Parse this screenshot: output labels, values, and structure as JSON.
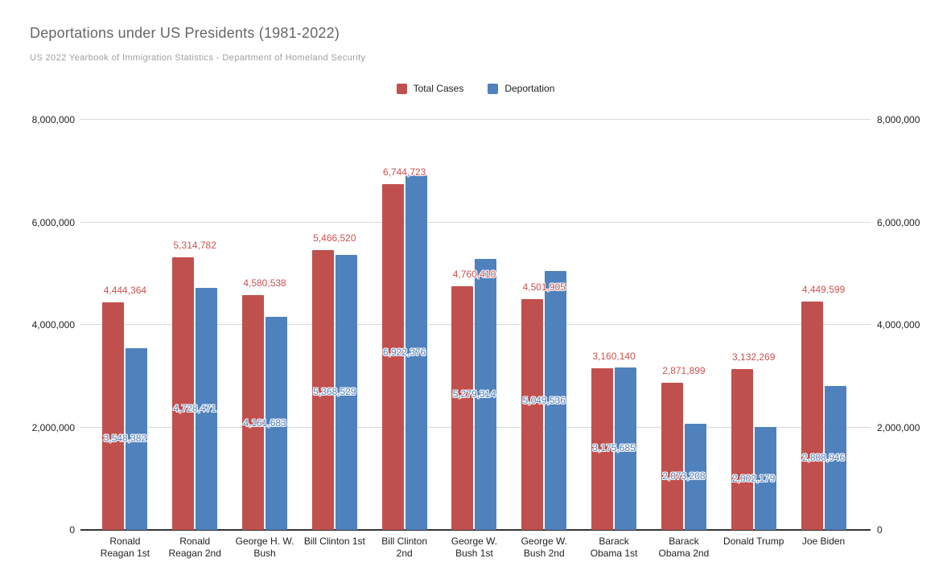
{
  "chart_data": {
    "type": "bar",
    "title": "Deportations under US Presidents (1981-2022)",
    "subtitle": "US 2022 Yearbook of Immigration Statistics - Department of Homeland Security",
    "categories": [
      "Ronald Reagan 1st",
      "Ronald Reagan 2nd",
      "George H. W. Bush",
      "Bill Clinton 1st",
      "Bill Clinton 2nd",
      "George W. Bush 1st",
      "George W. Bush 2nd",
      "Barack Obama 1st",
      "Barack Obama 2nd",
      "Donald Trump",
      "Joe Biden"
    ],
    "category_label_lines": [
      [
        "Ronald",
        "Reagan 1st"
      ],
      [
        "Ronald",
        "Reagan 2nd"
      ],
      [
        "George H. W.",
        "Bush"
      ],
      [
        "Bill Clinton 1st"
      ],
      [
        "Bill Clinton",
        "2nd"
      ],
      [
        "George W.",
        "Bush 1st"
      ],
      [
        "George W.",
        "Bush 2nd"
      ],
      [
        "Barack",
        "Obama 1st"
      ],
      [
        "Barack",
        "Obama 2nd"
      ],
      [
        "Donald Trump"
      ],
      [
        "Joe Biden"
      ]
    ],
    "series": [
      {
        "name": "Total Cases",
        "color": "#c0504d",
        "label_color": "#c9524f",
        "values": [
          4444364,
          5314782,
          4580538,
          5466520,
          6744723,
          4760410,
          4501905,
          3160140,
          2871899,
          3132269,
          4449599
        ]
      },
      {
        "name": "Deportation",
        "color": "#4f81bd",
        "label_color": "#4a7ab5",
        "values": [
          3548382,
          4728471,
          4161683,
          5368529,
          6922376,
          5279314,
          5049536,
          3175685,
          2073208,
          2002179,
          2808946
        ]
      }
    ],
    "ylim": [
      0,
      8000000
    ],
    "y_ticks": [
      0,
      2000000,
      4000000,
      6000000,
      8000000
    ],
    "y_tick_labels": [
      "0",
      "2,000,000",
      "4,000,000",
      "6,000,000",
      "8,000,000"
    ],
    "grid": true,
    "legend_position": "top",
    "y_axis_sides": "both"
  }
}
